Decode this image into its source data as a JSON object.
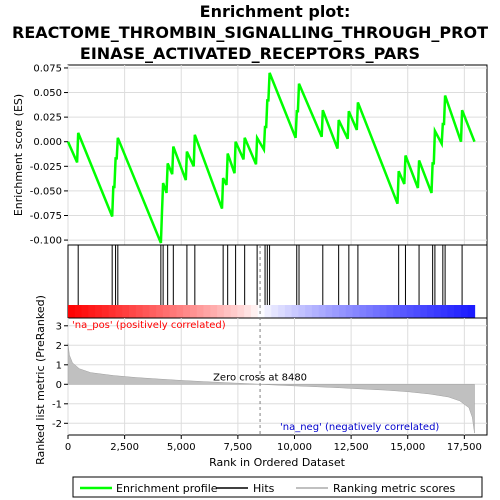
{
  "chart_data": {
    "type": "line",
    "title_lines": [
      "Enrichment plot:",
      "REACTOME_THROMBIN_SIGNALLING_THROUGH_PROT",
      "EINASE_ACTIVATED_RECEPTORS_PARS"
    ],
    "top_panel": {
      "ylabel": "Enrichment score (ES)",
      "ylim": [
        -0.105,
        0.078
      ],
      "yticks": [
        0.075,
        0.05,
        0.025,
        0.0,
        -0.025,
        -0.05,
        -0.075,
        -0.1
      ],
      "ytick_labels": [
        "0.075",
        "0.050",
        "0.025",
        "0.000",
        "-0.025",
        "-0.050",
        "-0.075",
        "-0.100"
      ],
      "series_name": "Enrichment profile",
      "series_color": "#00ff00",
      "points": [
        [
          0,
          0.0
        ],
        [
          400,
          -0.021
        ],
        [
          450,
          0.009
        ],
        [
          1950,
          -0.076
        ],
        [
          2000,
          -0.046
        ],
        [
          2050,
          -0.046
        ],
        [
          2100,
          -0.017
        ],
        [
          2150,
          -0.017
        ],
        [
          2200,
          0.004
        ],
        [
          4100,
          -0.103
        ],
        [
          4150,
          -0.071
        ],
        [
          4200,
          -0.042
        ],
        [
          4350,
          -0.052
        ],
        [
          4400,
          -0.022
        ],
        [
          4600,
          -0.033
        ],
        [
          4650,
          -0.005
        ],
        [
          5200,
          -0.039
        ],
        [
          5250,
          -0.01
        ],
        [
          5550,
          -0.025
        ],
        [
          5600,
          0.007
        ],
        [
          6800,
          -0.068
        ],
        [
          6850,
          -0.037
        ],
        [
          7000,
          -0.044
        ],
        [
          7050,
          -0.012
        ],
        [
          7350,
          -0.032
        ],
        [
          7400,
          0.0
        ],
        [
          7750,
          -0.018
        ],
        [
          7800,
          0.004
        ],
        [
          8300,
          -0.023
        ],
        [
          8350,
          0.004
        ],
        [
          8650,
          -0.008
        ],
        [
          8700,
          0.015
        ],
        [
          8750,
          0.015
        ],
        [
          8800,
          0.042
        ],
        [
          8850,
          0.042
        ],
        [
          8900,
          0.07
        ],
        [
          10050,
          0.004
        ],
        [
          10100,
          0.031
        ],
        [
          10150,
          0.031
        ],
        [
          10200,
          0.059
        ],
        [
          11200,
          0.005
        ],
        [
          11250,
          0.032
        ],
        [
          11900,
          -0.007
        ],
        [
          11950,
          0.022
        ],
        [
          12350,
          0.003
        ],
        [
          12400,
          0.031
        ],
        [
          12750,
          0.012
        ],
        [
          12800,
          0.04
        ],
        [
          14550,
          -0.063
        ],
        [
          14600,
          -0.03
        ],
        [
          14850,
          -0.043
        ],
        [
          14900,
          -0.014
        ],
        [
          15450,
          -0.047
        ],
        [
          15500,
          -0.019
        ],
        [
          16050,
          -0.052
        ],
        [
          16100,
          -0.022
        ],
        [
          16150,
          -0.022
        ],
        [
          16200,
          0.011
        ],
        [
          16500,
          -0.002
        ],
        [
          16550,
          0.018
        ],
        [
          16600,
          0.018
        ],
        [
          16650,
          0.047
        ],
        [
          17350,
          0.0
        ],
        [
          17400,
          0.032
        ],
        [
          17950,
          0.0
        ]
      ]
    },
    "hits_panel": {
      "legend_name": "Hits",
      "positions": [
        450,
        1950,
        2100,
        2200,
        4100,
        4200,
        4400,
        4650,
        5250,
        5600,
        6850,
        7050,
        7400,
        7800,
        8350,
        8700,
        8800,
        8900,
        10100,
        10200,
        11250,
        11950,
        12400,
        12800,
        14600,
        14900,
        15500,
        16100,
        16200,
        16550,
        16650,
        17400
      ]
    },
    "bottom_panel": {
      "ylabel": "Ranked list metric (PreRanked)",
      "ylim": [
        -2.6,
        3.4
      ],
      "yticks": [
        3,
        2,
        1,
        0,
        -1,
        -2
      ],
      "ytick_labels": [
        "3",
        "2",
        "1",
        "0",
        "-1",
        "-2"
      ],
      "series_name": "Ranking metric scores",
      "metric_curve": [
        [
          0,
          2.1
        ],
        [
          60,
          1.5
        ],
        [
          200,
          1.1
        ],
        [
          500,
          0.8
        ],
        [
          1000,
          0.6
        ],
        [
          2000,
          0.45
        ],
        [
          3000,
          0.35
        ],
        [
          4000,
          0.27
        ],
        [
          5000,
          0.2
        ],
        [
          6000,
          0.14
        ],
        [
          7000,
          0.08
        ],
        [
          8000,
          0.03
        ],
        [
          8480,
          0.0
        ],
        [
          9000,
          -0.03
        ],
        [
          10000,
          -0.08
        ],
        [
          11000,
          -0.13
        ],
        [
          12000,
          -0.18
        ],
        [
          13000,
          -0.24
        ],
        [
          14000,
          -0.3
        ],
        [
          15000,
          -0.38
        ],
        [
          16000,
          -0.5
        ],
        [
          16800,
          -0.65
        ],
        [
          17300,
          -0.85
        ],
        [
          17700,
          -1.2
        ],
        [
          17850,
          -1.7
        ],
        [
          17950,
          -2.5
        ]
      ],
      "zero_cross_label": "Zero cross at 8480",
      "zero_cross": 8480,
      "pos_label": "'na_pos' (positively correlated)",
      "neg_label": "'na_neg' (negatively correlated)"
    },
    "xaxis": {
      "xlabel": "Rank in Ordered Dataset",
      "xlim": [
        0,
        18500
      ],
      "xticks": [
        0,
        2500,
        5000,
        7500,
        10000,
        12500,
        15000,
        17500
      ],
      "xtick_labels": [
        "0",
        "2,500",
        "5,000",
        "7,500",
        "10,000",
        "12,500",
        "15,000",
        "17,500"
      ]
    },
    "colors": {
      "profile": "#00ff00",
      "pos_text": "#ff0000",
      "neg_text": "#0000cc",
      "metric_fill": "#c0c0c0",
      "gridline": "#dddddd",
      "zero_cross_line": "#808080"
    }
  }
}
